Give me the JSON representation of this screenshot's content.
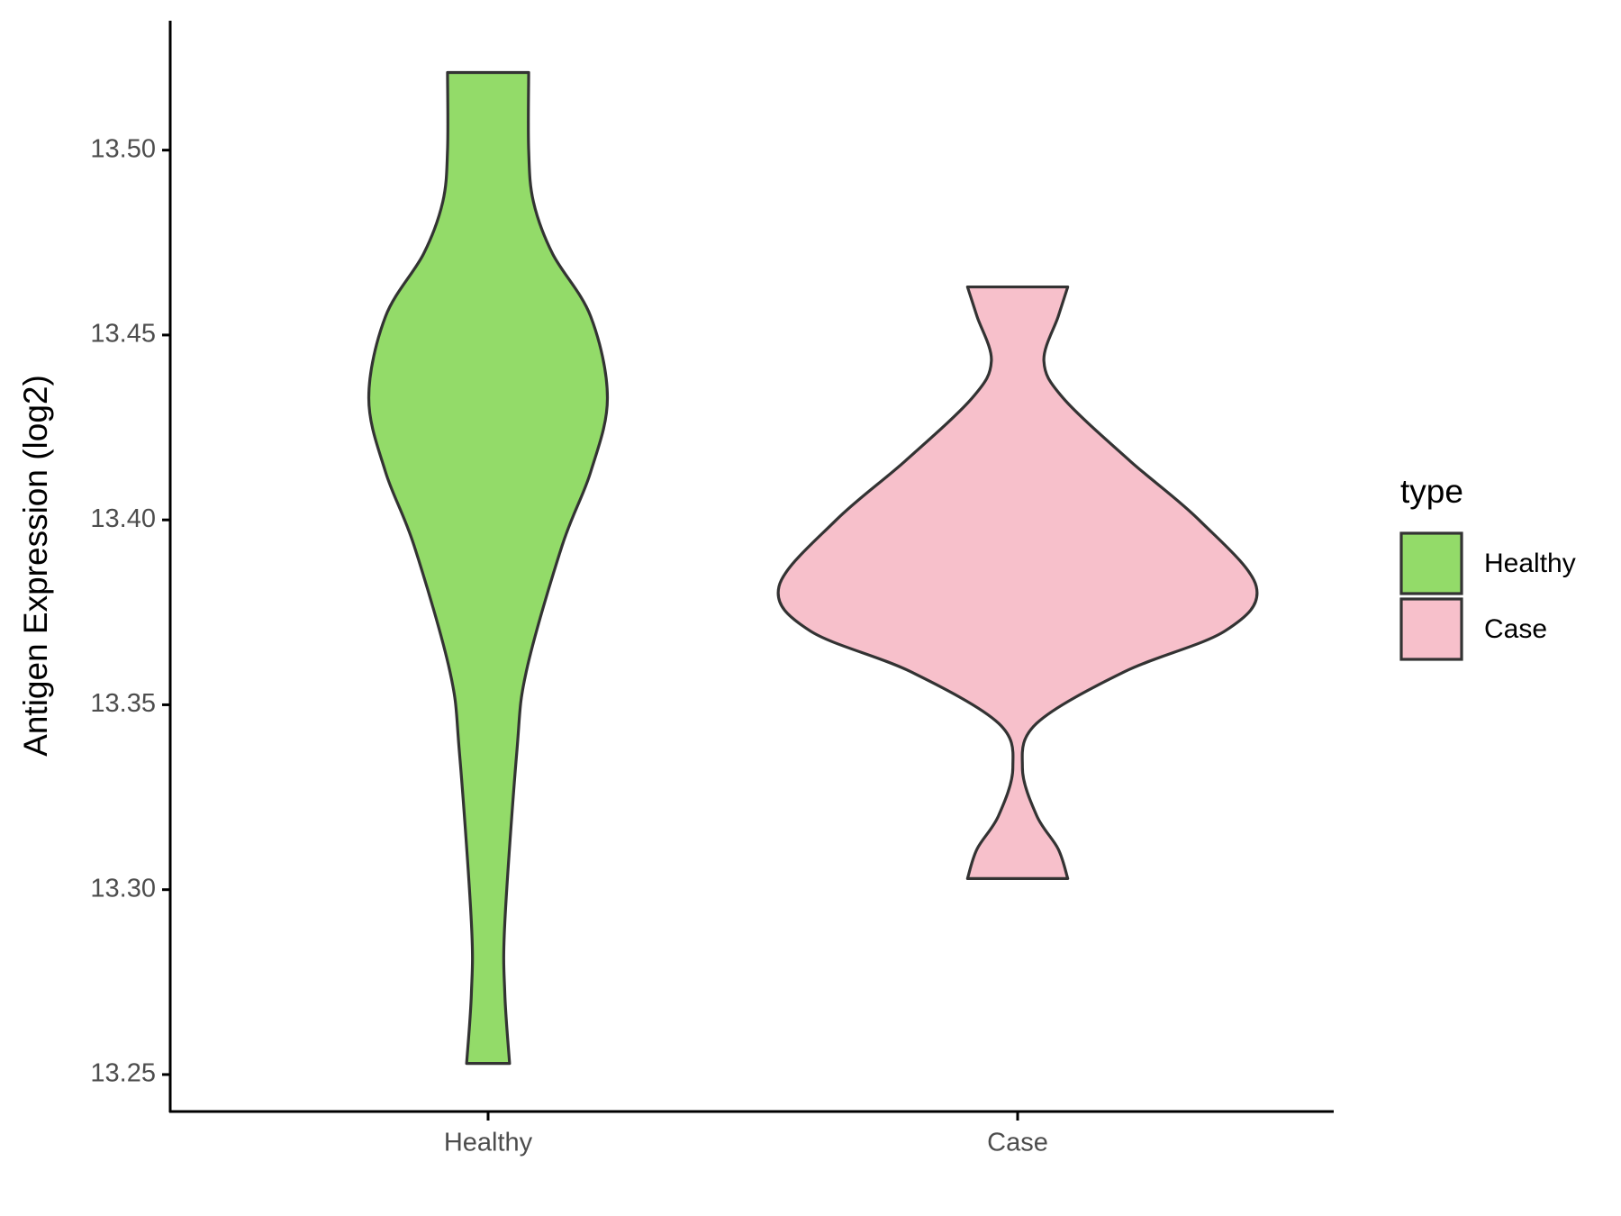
{
  "chart_data": {
    "type": "violin",
    "y_label": "Antigen Expression (log2)",
    "categories": [
      "Healthy",
      "Case"
    ],
    "legend_title": "type",
    "legend_position": "right",
    "ylim": [
      13.24,
      13.535
    ],
    "yticks": [
      {
        "value": 13.25,
        "label": "13.25"
      },
      {
        "value": 13.3,
        "label": "13.30"
      },
      {
        "value": 13.35,
        "label": "13.35"
      },
      {
        "value": 13.4,
        "label": "13.40"
      },
      {
        "value": 13.45,
        "label": "13.45"
      },
      {
        "value": 13.5,
        "label": "13.50"
      }
    ],
    "series": [
      {
        "name": "Healthy",
        "color": "#93db69",
        "y": [
          13.521,
          13.5,
          13.486,
          13.472,
          13.455,
          13.433,
          13.413,
          13.393,
          13.359,
          13.337,
          13.291,
          13.272,
          13.253
        ],
        "density": [
          0.17,
          0.17,
          0.19,
          0.27,
          0.43,
          0.5,
          0.43,
          0.31,
          0.16,
          0.12,
          0.07,
          0.07,
          0.09
        ]
      },
      {
        "name": "Case",
        "color": "#f7c0cb",
        "y": [
          13.463,
          13.455,
          13.443,
          13.433,
          13.416,
          13.4,
          13.382,
          13.37,
          13.359,
          13.345,
          13.333,
          13.32,
          13.311,
          13.303
        ],
        "density": [
          0.21,
          0.17,
          0.11,
          0.19,
          0.47,
          0.76,
          1,
          0.87,
          0.45,
          0.08,
          0.02,
          0.08,
          0.17,
          0.21
        ]
      }
    ]
  }
}
